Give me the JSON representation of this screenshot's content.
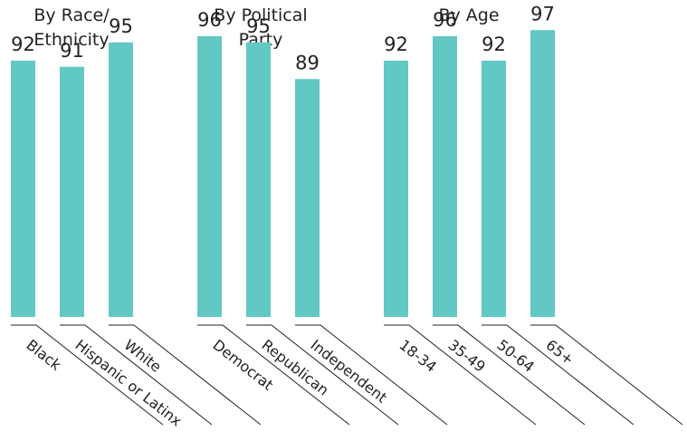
{
  "chart_data": {
    "type": "bar",
    "groups": [
      {
        "title": [
          "By Race/",
          "Ethnicity"
        ],
        "categories": [
          "Black",
          "Hispanic or Latinx",
          "White"
        ],
        "values": [
          92,
          91,
          95
        ]
      },
      {
        "title": [
          "By Political",
          "Party"
        ],
        "categories": [
          "Democrat",
          "Republican",
          "Independent"
        ],
        "values": [
          96,
          95,
          89
        ]
      },
      {
        "title": [
          "By Age"
        ],
        "categories": [
          "18-34",
          "35-49",
          "50-64",
          "65+"
        ],
        "values": [
          92,
          96,
          92,
          97
        ]
      }
    ],
    "bar_color": "#62c8c3",
    "grid": false,
    "legend": "none"
  }
}
